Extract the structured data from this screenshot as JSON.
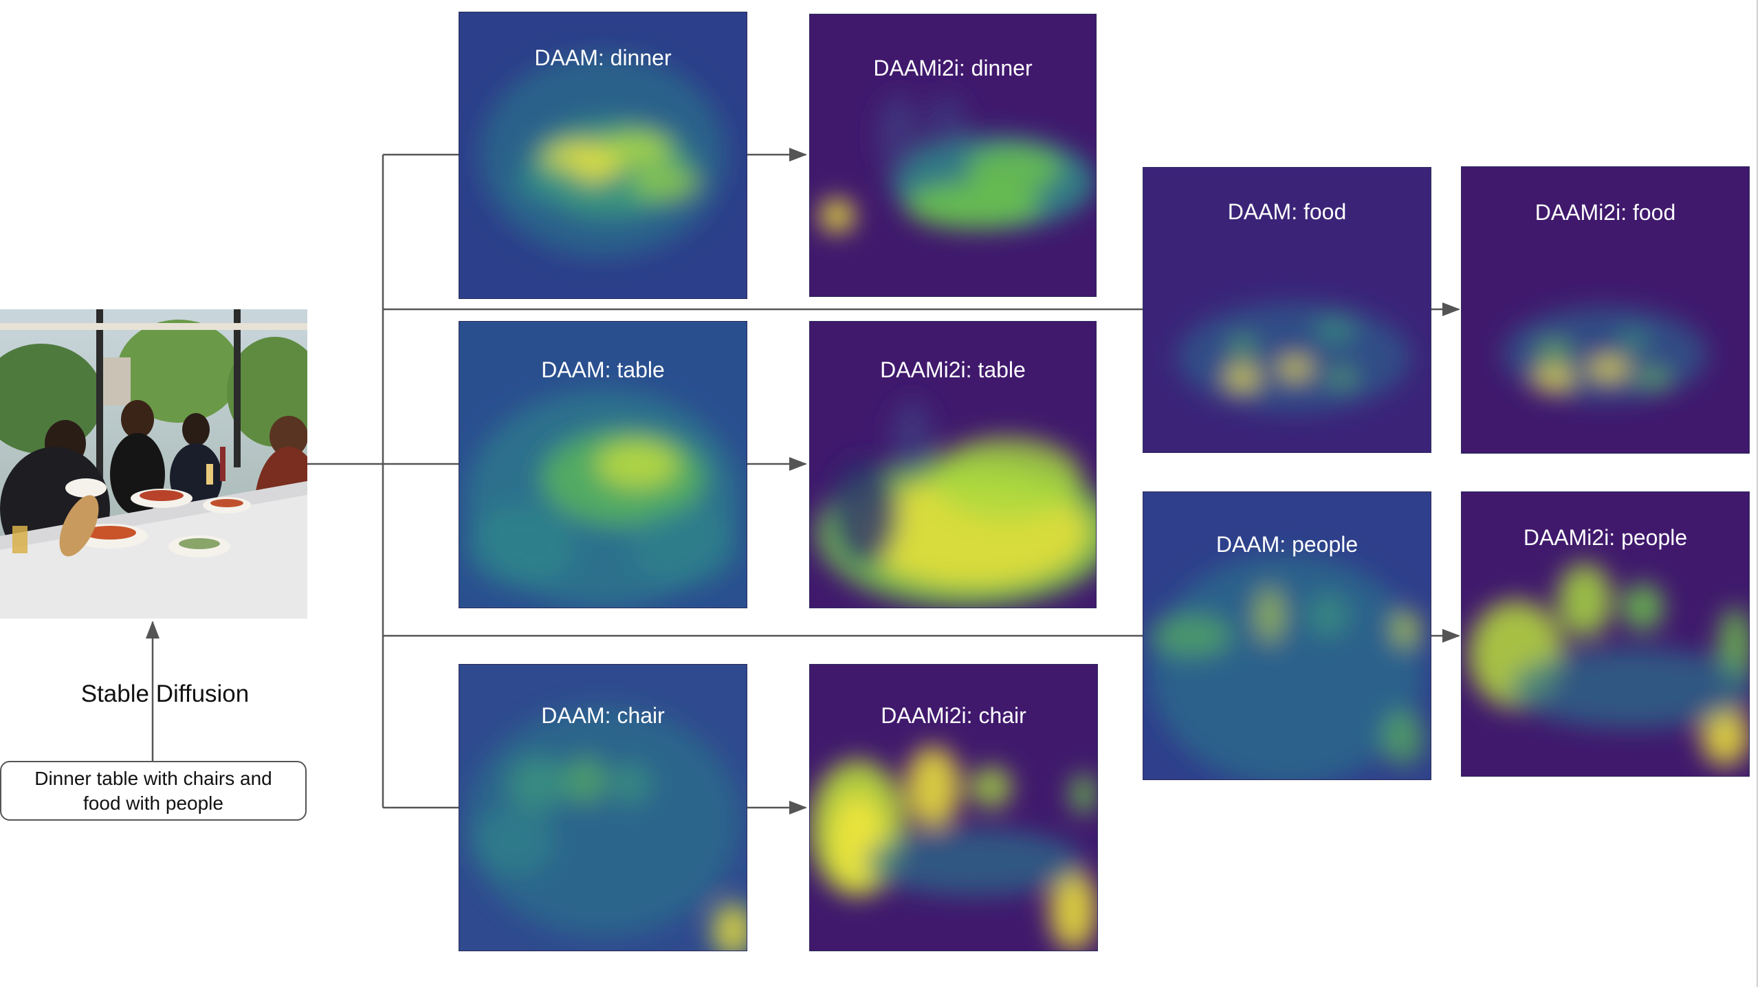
{
  "diagram": {
    "prompt": "Dinner table with chairs and food with people",
    "generator_label": "Stable Diffusion",
    "panels": [
      {
        "id": "daam-dinner",
        "title": "DAAM: dinner"
      },
      {
        "id": "daami2i-dinner",
        "title": "DAAMi2i: dinner"
      },
      {
        "id": "daam-table",
        "title": "DAAM: table"
      },
      {
        "id": "daami2i-table",
        "title": "DAAMi2i: table"
      },
      {
        "id": "daam-chair",
        "title": "DAAM: chair"
      },
      {
        "id": "daami2i-chair",
        "title": "DAAMi2i: chair"
      },
      {
        "id": "daam-food",
        "title": "DAAM: food"
      },
      {
        "id": "daami2i-food",
        "title": "DAAMi2i: food"
      },
      {
        "id": "daam-people",
        "title": "DAAM: people"
      },
      {
        "id": "daami2i-people",
        "title": "DAAMi2i: people"
      }
    ]
  },
  "colors": {
    "heatmap_low": "#3b1566",
    "heatmap_mid": "#2b6f8a",
    "heatmap_high": "#f1e63a",
    "connector": "#555555"
  }
}
